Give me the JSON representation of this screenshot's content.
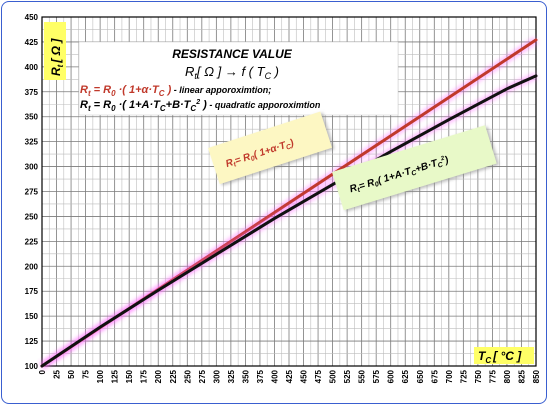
{
  "chart_data": {
    "type": "line",
    "title": "RESISTANCE VALUE",
    "subtitle": {
      "pre": "R",
      "sub_t": "t",
      "mid": "[ Ω ] → f ( T",
      "sub_c": "C",
      "post": " )"
    },
    "ylabel": {
      "main": "R",
      "sub": "t",
      "unit": "[ Ω ]"
    },
    "xlabel": {
      "main": "T",
      "sub": "C",
      "unit": "[ °C ]"
    },
    "xlim": [
      0,
      850
    ],
    "ylim": [
      100,
      450
    ],
    "xticks": [
      "0",
      "25",
      "50",
      "75",
      "100",
      "125",
      "150",
      "175",
      "200",
      "225",
      "250",
      "275",
      "300",
      "325",
      "350",
      "375",
      "400",
      "425",
      "450",
      "475",
      "500",
      "525",
      "550",
      "575",
      "600",
      "625",
      "650",
      "675",
      "700",
      "725",
      "750",
      "775",
      "800",
      "825",
      "850"
    ],
    "yticks": [
      "100",
      "125",
      "150",
      "175",
      "200",
      "225",
      "250",
      "275",
      "300",
      "325",
      "350",
      "375",
      "400",
      "425",
      "450"
    ],
    "x_grid_step": 12.5,
    "y_grid_step": 12.5,
    "grid": true,
    "legend": [
      {
        "color": "#c0392b",
        "formula": "Rt = R0 ·( 1+α·TC )",
        "note": " - linear apporoximtion;"
      },
      {
        "color": "#000000",
        "formula": "Rt = R0 ·( 1+A·TC+B·TC2 )",
        "note": " - quadratic apporoximtion"
      }
    ],
    "series": [
      {
        "color": "#c0392b",
        "x": [
          0,
          850
        ],
        "y": [
          100,
          427
        ]
      },
      {
        "color": "#111111",
        "x": [
          0,
          100,
          200,
          300,
          400,
          500,
          600,
          700,
          800,
          850
        ],
        "y": [
          100,
          139,
          176,
          212,
          248,
          282,
          315,
          347,
          378,
          391
        ]
      }
    ],
    "annotations": [
      {
        "text": "Rt= R0( 1+α·TC)",
        "bg": "#fdf7c3"
      },
      {
        "text": "Rt= R0( 1+A·TC+B·TC2)",
        "bg": "#e8f9c8"
      }
    ]
  }
}
